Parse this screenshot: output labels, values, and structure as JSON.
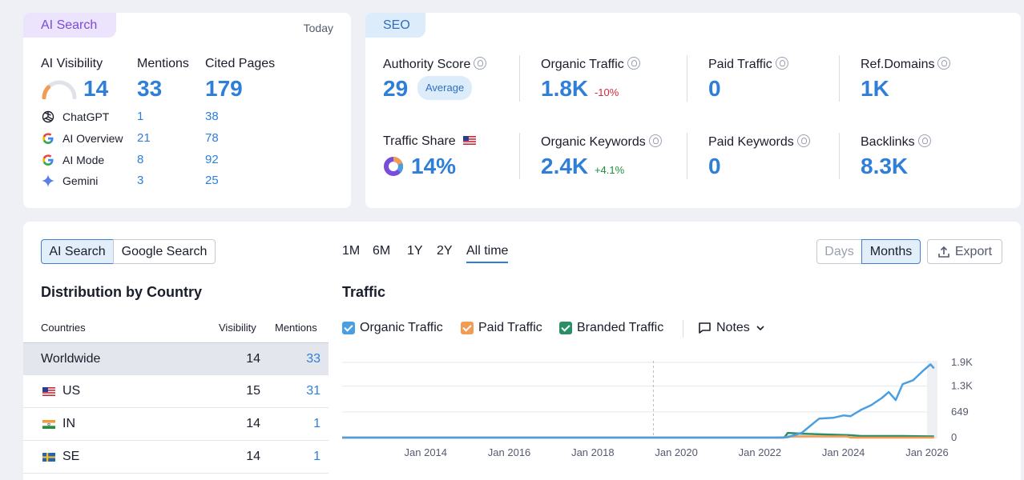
{
  "ai_card": {
    "tag": "AI Search",
    "date": "Today",
    "headers": {
      "visibility": "AI Visibility",
      "mentions": "Mentions",
      "cited": "Cited Pages"
    },
    "totals": {
      "visibility": "14",
      "mentions": "33",
      "cited": "179"
    },
    "rows": [
      {
        "label": "ChatGPT",
        "icon": "chatgpt-icon",
        "mentions": "1",
        "cited": "38"
      },
      {
        "label": "AI Overview",
        "icon": "google-icon",
        "mentions": "21",
        "cited": "78"
      },
      {
        "label": "AI Mode",
        "icon": "google-icon",
        "mentions": "8",
        "cited": "92"
      },
      {
        "label": "Gemini",
        "icon": "gemini-icon",
        "mentions": "3",
        "cited": "25"
      }
    ]
  },
  "seo_card": {
    "tag": "SEO",
    "authority": {
      "label": "Authority Score",
      "value": "29",
      "badge": "Average"
    },
    "organic_traffic": {
      "label": "Organic Traffic",
      "value": "1.8K",
      "delta": "-10%"
    },
    "paid_traffic": {
      "label": "Paid Traffic",
      "value": "0"
    },
    "ref_domains": {
      "label": "Ref.Domains",
      "value": "1K"
    },
    "traffic_share": {
      "label": "Traffic Share",
      "value": "14%"
    },
    "organic_keywords": {
      "label": "Organic Keywords",
      "value": "2.4K",
      "delta": "+4.1%"
    },
    "paid_keywords": {
      "label": "Paid Keywords",
      "value": "0"
    },
    "backlinks": {
      "label": "Backlinks",
      "value": "8.3K"
    }
  },
  "bottom": {
    "toggle": {
      "ai": "AI Search",
      "google": "Google Search"
    },
    "distribution_title": "Distribution by Country",
    "columns": {
      "country": "Countries",
      "visibility": "Visibility",
      "mentions": "Mentions"
    },
    "countries": [
      {
        "name": "Worldwide",
        "visibility": "14",
        "mentions": "33"
      },
      {
        "name": "US",
        "visibility": "15",
        "mentions": "31"
      },
      {
        "name": "IN",
        "visibility": "14",
        "mentions": "1"
      },
      {
        "name": "SE",
        "visibility": "14",
        "mentions": "1"
      }
    ],
    "ranges": [
      "1M",
      "6M",
      "1Y",
      "2Y",
      "All time"
    ],
    "selected_range": "All time",
    "granularity": {
      "days": "Days",
      "months": "Months"
    },
    "export": "Export",
    "traffic_title": "Traffic",
    "legend": {
      "organic": "Organic Traffic",
      "paid": "Paid Traffic",
      "branded": "Branded Traffic",
      "notes": "Notes"
    },
    "colors": {
      "organic": "#4a9fe3",
      "paid": "#f29b55",
      "branded": "#2a8f68",
      "accent": "#2f7fd8"
    }
  },
  "chart_data": {
    "type": "line",
    "ylim": [
      0,
      1900
    ],
    "y_ticks": [
      "1.9K",
      "1.3K",
      "649",
      "0"
    ],
    "x_ticks": [
      "Jan 2014",
      "Jan 2016",
      "Jan 2018",
      "Jan 2020",
      "Jan 2022",
      "Jan 2024",
      "Jan 2026"
    ],
    "series": [
      {
        "name": "Organic Traffic",
        "color": "#4a9fe3",
        "points": [
          [
            "2012-01",
            0
          ],
          [
            "2022-06",
            0
          ],
          [
            "2022-09",
            10
          ],
          [
            "2023-01",
            120
          ],
          [
            "2023-06",
            480
          ],
          [
            "2023-10",
            500
          ],
          [
            "2024-01",
            560
          ],
          [
            "2024-03",
            540
          ],
          [
            "2024-06",
            700
          ],
          [
            "2024-09",
            820
          ],
          [
            "2024-12",
            1000
          ],
          [
            "2025-02",
            1150
          ],
          [
            "2025-04",
            950
          ],
          [
            "2025-06",
            1350
          ],
          [
            "2025-09",
            1450
          ],
          [
            "2025-12",
            1700
          ],
          [
            "2026-02",
            1850
          ],
          [
            "2026-03",
            1750
          ]
        ]
      },
      {
        "name": "Paid Traffic",
        "color": "#f29b55",
        "points": [
          [
            "2012-01",
            0
          ],
          [
            "2022-08",
            0
          ],
          [
            "2022-09",
            30
          ],
          [
            "2024-02",
            30
          ],
          [
            "2024-03",
            0
          ],
          [
            "2026-03",
            0
          ]
        ]
      },
      {
        "name": "Branded Traffic",
        "color": "#2a8f68",
        "points": [
          [
            "2012-01",
            0
          ],
          [
            "2022-08",
            0
          ],
          [
            "2022-09",
            120
          ],
          [
            "2023-01",
            100
          ],
          [
            "2024-03",
            60
          ],
          [
            "2024-06",
            40
          ],
          [
            "2025-06",
            40
          ],
          [
            "2026-03",
            30
          ]
        ]
      }
    ]
  }
}
